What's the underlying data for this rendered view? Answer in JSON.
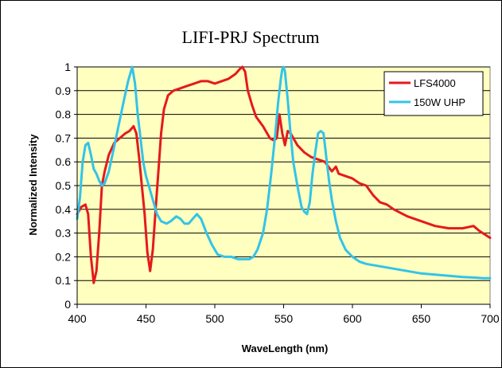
{
  "chart_data": {
    "type": "line",
    "title": "LIFI-PRJ Spectrum",
    "xlabel": "WaveLength (nm)",
    "ylabel": "Normalized Intensity",
    "xlim": [
      400,
      700
    ],
    "ylim": [
      0,
      1
    ],
    "x_ticks": [
      "400",
      "450",
      "500",
      "550",
      "600",
      "650",
      "700"
    ],
    "y_ticks": [
      "0",
      "0.1",
      "0.2",
      "0.3",
      "0.4",
      "0.5",
      "0.6",
      "0.7",
      "0.8",
      "0.9",
      "1"
    ],
    "grid": "horizontal",
    "legend_position": "top-right",
    "plot_background": "#FFFFC0",
    "series": [
      {
        "name": "LFS4000",
        "color": "#E41A1C",
        "points": [
          [
            400,
            0.38
          ],
          [
            403,
            0.41
          ],
          [
            406,
            0.42
          ],
          [
            408,
            0.38
          ],
          [
            410,
            0.2
          ],
          [
            412,
            0.09
          ],
          [
            414,
            0.14
          ],
          [
            416,
            0.3
          ],
          [
            418,
            0.5
          ],
          [
            420,
            0.56
          ],
          [
            423,
            0.63
          ],
          [
            427,
            0.68
          ],
          [
            431,
            0.7
          ],
          [
            435,
            0.72
          ],
          [
            438,
            0.73
          ],
          [
            441,
            0.75
          ],
          [
            443,
            0.72
          ],
          [
            445,
            0.62
          ],
          [
            447,
            0.5
          ],
          [
            449,
            0.38
          ],
          [
            451,
            0.22
          ],
          [
            453,
            0.14
          ],
          [
            455,
            0.23
          ],
          [
            457,
            0.4
          ],
          [
            459,
            0.56
          ],
          [
            461,
            0.72
          ],
          [
            463,
            0.82
          ],
          [
            466,
            0.88
          ],
          [
            470,
            0.9
          ],
          [
            475,
            0.91
          ],
          [
            480,
            0.92
          ],
          [
            485,
            0.93
          ],
          [
            490,
            0.94
          ],
          [
            495,
            0.94
          ],
          [
            500,
            0.93
          ],
          [
            505,
            0.94
          ],
          [
            510,
            0.95
          ],
          [
            515,
            0.97
          ],
          [
            518,
            0.99
          ],
          [
            520,
            1.0
          ],
          [
            522,
            0.98
          ],
          [
            524,
            0.9
          ],
          [
            527,
            0.84
          ],
          [
            530,
            0.79
          ],
          [
            535,
            0.75
          ],
          [
            540,
            0.7
          ],
          [
            543,
            0.69
          ],
          [
            545,
            0.7
          ],
          [
            547,
            0.8
          ],
          [
            549,
            0.72
          ],
          [
            551,
            0.67
          ],
          [
            553,
            0.73
          ],
          [
            555,
            0.72
          ],
          [
            560,
            0.67
          ],
          [
            565,
            0.64
          ],
          [
            570,
            0.62
          ],
          [
            575,
            0.61
          ],
          [
            580,
            0.6
          ],
          [
            585,
            0.56
          ],
          [
            588,
            0.58
          ],
          [
            590,
            0.55
          ],
          [
            595,
            0.54
          ],
          [
            600,
            0.53
          ],
          [
            605,
            0.51
          ],
          [
            610,
            0.5
          ],
          [
            615,
            0.46
          ],
          [
            620,
            0.43
          ],
          [
            625,
            0.42
          ],
          [
            630,
            0.4
          ],
          [
            640,
            0.37
          ],
          [
            650,
            0.35
          ],
          [
            660,
            0.33
          ],
          [
            670,
            0.32
          ],
          [
            680,
            0.32
          ],
          [
            688,
            0.33
          ],
          [
            692,
            0.31
          ],
          [
            700,
            0.28
          ]
        ]
      },
      {
        "name": "150W UHP",
        "color": "#33C3E8",
        "points": [
          [
            400,
            0.36
          ],
          [
            402,
            0.45
          ],
          [
            404,
            0.6
          ],
          [
            406,
            0.67
          ],
          [
            408,
            0.68
          ],
          [
            410,
            0.63
          ],
          [
            412,
            0.57
          ],
          [
            414,
            0.55
          ],
          [
            416,
            0.52
          ],
          [
            418,
            0.5
          ],
          [
            420,
            0.51
          ],
          [
            423,
            0.56
          ],
          [
            426,
            0.64
          ],
          [
            430,
            0.75
          ],
          [
            434,
            0.86
          ],
          [
            437,
            0.94
          ],
          [
            439,
            0.98
          ],
          [
            440,
            1.0
          ],
          [
            442,
            0.93
          ],
          [
            444,
            0.8
          ],
          [
            446,
            0.7
          ],
          [
            448,
            0.6
          ],
          [
            450,
            0.54
          ],
          [
            452,
            0.5
          ],
          [
            455,
            0.44
          ],
          [
            458,
            0.38
          ],
          [
            461,
            0.35
          ],
          [
            465,
            0.34
          ],
          [
            468,
            0.35
          ],
          [
            472,
            0.37
          ],
          [
            475,
            0.36
          ],
          [
            478,
            0.34
          ],
          [
            481,
            0.34
          ],
          [
            484,
            0.36
          ],
          [
            487,
            0.38
          ],
          [
            490,
            0.36
          ],
          [
            494,
            0.3
          ],
          [
            498,
            0.25
          ],
          [
            502,
            0.21
          ],
          [
            507,
            0.2
          ],
          [
            512,
            0.2
          ],
          [
            517,
            0.19
          ],
          [
            522,
            0.19
          ],
          [
            525,
            0.19
          ],
          [
            528,
            0.2
          ],
          [
            531,
            0.23
          ],
          [
            535,
            0.3
          ],
          [
            538,
            0.4
          ],
          [
            541,
            0.55
          ],
          [
            544,
            0.72
          ],
          [
            546,
            0.85
          ],
          [
            548,
            0.95
          ],
          [
            549,
            0.99
          ],
          [
            550,
            1.0
          ],
          [
            551,
            0.98
          ],
          [
            553,
            0.86
          ],
          [
            555,
            0.72
          ],
          [
            557,
            0.6
          ],
          [
            560,
            0.5
          ],
          [
            563,
            0.41
          ],
          [
            565,
            0.39
          ],
          [
            567,
            0.38
          ],
          [
            569,
            0.43
          ],
          [
            571,
            0.55
          ],
          [
            573,
            0.64
          ],
          [
            575,
            0.72
          ],
          [
            577,
            0.73
          ],
          [
            579,
            0.72
          ],
          [
            581,
            0.62
          ],
          [
            583,
            0.52
          ],
          [
            585,
            0.44
          ],
          [
            588,
            0.35
          ],
          [
            591,
            0.28
          ],
          [
            595,
            0.23
          ],
          [
            600,
            0.2
          ],
          [
            605,
            0.18
          ],
          [
            610,
            0.17
          ],
          [
            620,
            0.16
          ],
          [
            630,
            0.15
          ],
          [
            640,
            0.14
          ],
          [
            650,
            0.13
          ],
          [
            660,
            0.125
          ],
          [
            670,
            0.12
          ],
          [
            680,
            0.115
          ],
          [
            690,
            0.112
          ],
          [
            695,
            0.11
          ],
          [
            700,
            0.11
          ]
        ]
      }
    ]
  }
}
